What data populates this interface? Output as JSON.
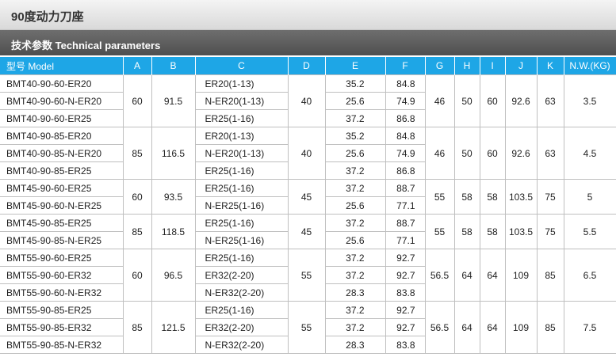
{
  "page_title": "90度动力刀座",
  "section_title": "技术参数 Technical parameters",
  "columns": [
    "型号 Model",
    "A",
    "B",
    "C",
    "D",
    "E",
    "F",
    "G",
    "H",
    "I",
    "J",
    "K",
    "N.W.(KG)"
  ],
  "groups": [
    {
      "A": "60",
      "B": "91.5",
      "D": "40",
      "G": "46",
      "H": "50",
      "I": "60",
      "J": "92.6",
      "K": "63",
      "NW": "3.5",
      "rows": [
        {
          "model": "BMT40-90-60-ER20",
          "C": "ER20(1-13)",
          "E": "35.2",
          "F": "84.8"
        },
        {
          "model": "BMT40-90-60-N-ER20",
          "C": "N-ER20(1-13)",
          "E": "25.6",
          "F": "74.9"
        },
        {
          "model": "BMT40-90-60-ER25",
          "C": "ER25(1-16)",
          "E": "37.2",
          "F": "86.8"
        }
      ]
    },
    {
      "A": "85",
      "B": "116.5",
      "D": "40",
      "G": "46",
      "H": "50",
      "I": "60",
      "J": "92.6",
      "K": "63",
      "NW": "4.5",
      "rows": [
        {
          "model": "BMT40-90-85-ER20",
          "C": "ER20(1-13)",
          "E": "35.2",
          "F": "84.8"
        },
        {
          "model": "BMT40-90-85-N-ER20",
          "C": "N-ER20(1-13)",
          "E": "25.6",
          "F": "74.9"
        },
        {
          "model": "BMT40-90-85-ER25",
          "C": "ER25(1-16)",
          "E": "37.2",
          "F": "86.8"
        }
      ]
    },
    {
      "A": "60",
      "B": "93.5",
      "D": "45",
      "G": "55",
      "H": "58",
      "I": "58",
      "J": "103.5",
      "K": "75",
      "NW": "5",
      "rows": [
        {
          "model": "BMT45-90-60-ER25",
          "C": "ER25(1-16)",
          "E": "37.2",
          "F": "88.7"
        },
        {
          "model": "BMT45-90-60-N-ER25",
          "C": "N-ER25(1-16)",
          "E": "25.6",
          "F": "77.1"
        }
      ]
    },
    {
      "A": "85",
      "B": "118.5",
      "D": "45",
      "G": "55",
      "H": "58",
      "I": "58",
      "J": "103.5",
      "K": "75",
      "NW": "5.5",
      "rows": [
        {
          "model": "BMT45-90-85-ER25",
          "C": "ER25(1-16)",
          "E": "37.2",
          "F": "88.7"
        },
        {
          "model": "BMT45-90-85-N-ER25",
          "C": "N-ER25(1-16)",
          "E": "25.6",
          "F": "77.1"
        }
      ]
    },
    {
      "A": "60",
      "B": "96.5",
      "D": "55",
      "G": "56.5",
      "H": "64",
      "I": "64",
      "J": "109",
      "K": "85",
      "NW": "6.5",
      "rows": [
        {
          "model": "BMT55-90-60-ER25",
          "C": "ER25(1-16)",
          "E": "37.2",
          "F": "92.7"
        },
        {
          "model": "BMT55-90-60-ER32",
          "C": "ER32(2-20)",
          "E": "37.2",
          "F": "92.7"
        },
        {
          "model": "BMT55-90-60-N-ER32",
          "C": "N-ER32(2-20)",
          "E": "28.3",
          "F": "83.8"
        }
      ]
    },
    {
      "A": "85",
      "B": "121.5",
      "D": "55",
      "G": "56.5",
      "H": "64",
      "I": "64",
      "J": "109",
      "K": "85",
      "NW": "7.5",
      "rows": [
        {
          "model": "BMT55-90-85-ER25",
          "C": "ER25(1-16)",
          "E": "37.2",
          "F": "92.7"
        },
        {
          "model": "BMT55-90-85-ER32",
          "C": "ER32(2-20)",
          "E": "37.2",
          "F": "92.7"
        },
        {
          "model": "BMT55-90-85-N-ER32",
          "C": "N-ER32(2-20)",
          "E": "28.3",
          "F": "83.8"
        }
      ]
    }
  ]
}
